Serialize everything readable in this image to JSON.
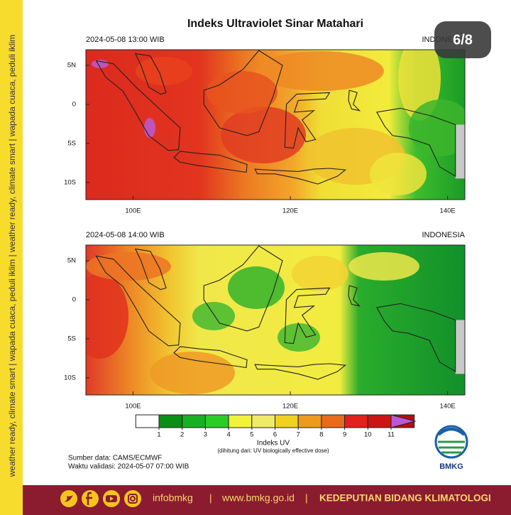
{
  "sidebar_text": "weather ready, climate smart | wapada cuaca, peduli iklim | weather ready, climate smart | wapada cuaca, peduli iklim",
  "title": "Indeks Ultraviolet Sinar Matahari",
  "badge": "6/8",
  "map_axes": {
    "lonlim": [
      94,
      142.2
    ],
    "latlim": [
      -12.2,
      7
    ],
    "xticks": [
      {
        "value": 100,
        "label": "100E"
      },
      {
        "value": 120,
        "label": "120E"
      },
      {
        "value": 140,
        "label": "140E"
      }
    ],
    "yticks": [
      {
        "value": 5,
        "label": "5N"
      },
      0,
      {
        "value": -5,
        "label": "5S"
      },
      {
        "value": -10,
        "label": "10S"
      }
    ]
  },
  "panels": [
    {
      "datetime": "2024-05-08  13:00 WIB",
      "region": "INDONESIA"
    },
    {
      "datetime": "2024-05-08  14:00 WIB",
      "region": "INDONESIA"
    }
  ],
  "colorbar": {
    "ticks": [
      1,
      2,
      3,
      4,
      5,
      6,
      7,
      8,
      9,
      10,
      11
    ],
    "colors": [
      "#ffffff",
      "#0a8f14",
      "#18b020",
      "#2ccc28",
      "#f2f23c",
      "#f0ea6a",
      "#f0d020",
      "#ee9a1e",
      "#e86a1c",
      "#e3201b",
      "#cc1414",
      "#b70d0d",
      "#b85ad6"
    ],
    "label": "Indeks UV",
    "note": "(dihitung dari: UV biologically effective dose)"
  },
  "source": "Sumber data: CAMS/ECMWF",
  "validity": "Waktu validasi: 2024-05-07 07:00 WIB",
  "logo": "BMKG",
  "footer": {
    "handle": "infobmkg",
    "sep1": "|",
    "website": "www.bmkg.go.id",
    "sep2": "|",
    "department": "KEDEPUTIAN BIDANG KLIMATOLOGI"
  }
}
